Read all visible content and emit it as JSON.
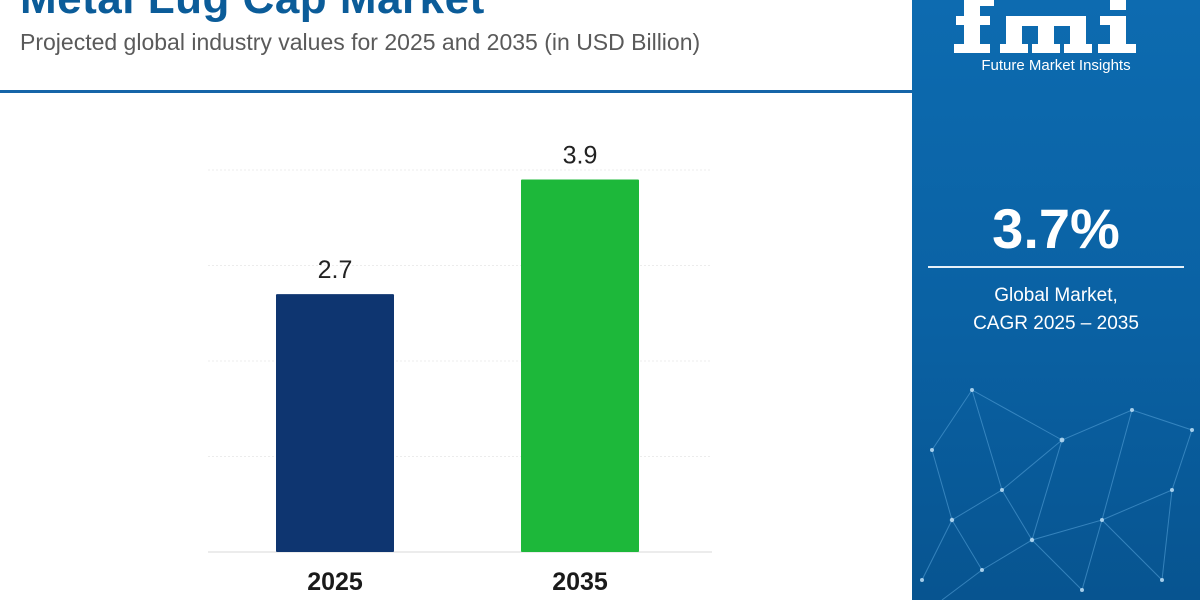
{
  "header": {
    "title": "Metal Lug Cap Market",
    "subtitle": "Projected global industry values for 2025 and 2035 (in USD Billion)"
  },
  "chart_data": {
    "type": "bar",
    "categories": [
      "2025",
      "2035"
    ],
    "series": [
      {
        "values": [
          2.7,
          3.9
        ]
      }
    ],
    "data_labels": [
      "2.7",
      "3.9"
    ],
    "bar_colors": [
      "#0e3570",
      "#1db83a"
    ],
    "ylim": [
      0,
      4
    ],
    "grid": true,
    "legend": "none",
    "title": "",
    "xlabel": "",
    "ylabel": ""
  },
  "side_panel": {
    "brand_mark": "fmi",
    "brand_name": "Future Market Insights",
    "cagr_value": "3.7%",
    "cagr_label_line1": "Global Market,",
    "cagr_label_line2": "CAGR 2025 – 2035",
    "background_color": "#0a63a6"
  }
}
